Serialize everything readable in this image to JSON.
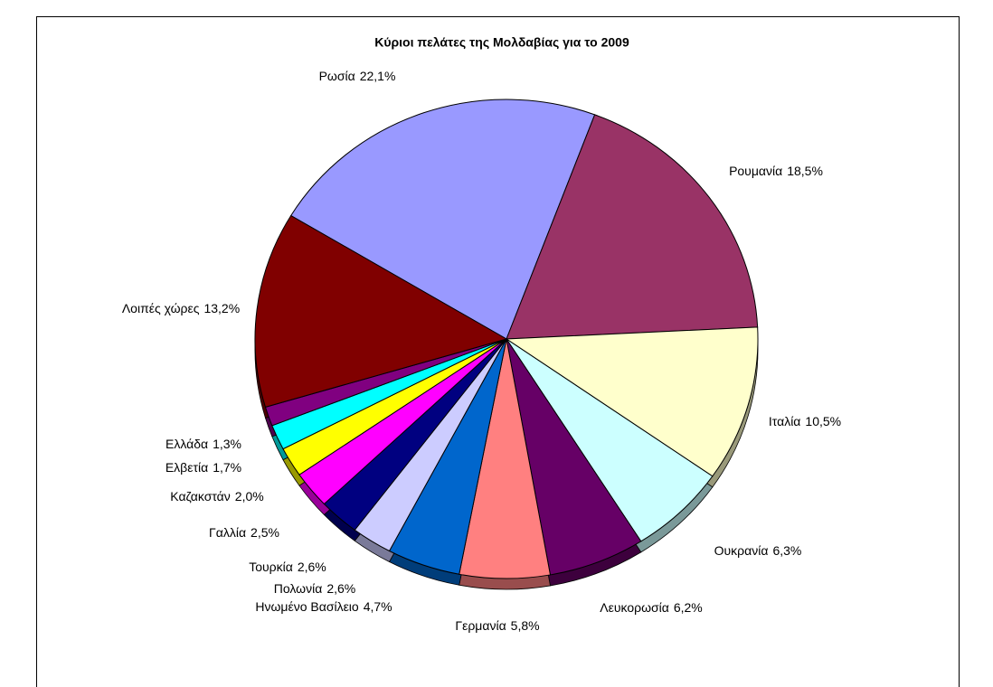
{
  "chart_data": {
    "type": "pie",
    "title": "Κύριοι πελάτες της Μολδαβίας για το 2009",
    "categories": [
      "Ρωσία",
      "Ρουμανία",
      "Ιταλία",
      "Ουκρανία",
      "Λευκορωσία",
      "Γερμανία",
      "Ηνωμένο Βασίλειο",
      "Πολωνία",
      "Τουρκία",
      "Γαλλία",
      "Καζακστάν",
      "Ελβετία",
      "Ελλάδα",
      "Λοιπές χώρες"
    ],
    "values": [
      22.1,
      18.5,
      10.5,
      6.3,
      6.2,
      5.8,
      4.7,
      2.6,
      2.6,
      2.5,
      2.0,
      1.7,
      1.3,
      13.2
    ],
    "value_labels": [
      "22,1%",
      "18,5%",
      "10,5%",
      "6,3%",
      "6,2%",
      "5,8%",
      "4,7%",
      "2,6%",
      "2,6%",
      "2,5%",
      "2,0%",
      "1,7%",
      "1,3%",
      "13,2%"
    ],
    "colors": [
      "#9999ff",
      "#993366",
      "#ffffcc",
      "#ccffff",
      "#660066",
      "#ff8080",
      "#0066cc",
      "#ccccff",
      "#000080",
      "#ff00ff",
      "#ffff00",
      "#00ffff",
      "#800080",
      "#800000"
    ]
  }
}
